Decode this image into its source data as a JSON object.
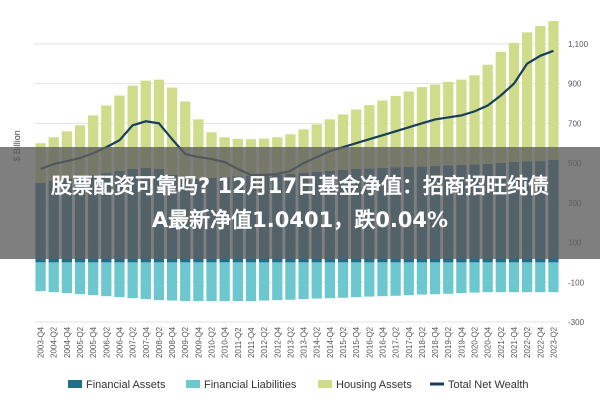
{
  "headline": {
    "line1": "股票配资可靠吗? 12月17日基金净值：招商招旺纯债",
    "line2": "A最新净值1.0401，跌0.04%"
  },
  "chart_data": {
    "type": "bar",
    "ylabel": "$ Billion",
    "ylim": [
      -300,
      1200
    ],
    "yticks": [
      -300,
      -100,
      100,
      300,
      500,
      700,
      900,
      1100
    ],
    "ytick_labels": [
      "-300",
      "-100",
      "100",
      "300",
      "500",
      "700",
      "900",
      "1,100"
    ],
    "grid": true,
    "legend_position": "bottom",
    "categories": [
      "2003-Q4",
      "2004-Q2",
      "2004-Q4",
      "2005-Q2",
      "2005-Q4",
      "2006-Q2",
      "2006-Q4",
      "2007-Q2",
      "2007-Q4",
      "2008-Q2",
      "2008-Q4",
      "2009-Q2",
      "2009-Q4",
      "2010-Q2",
      "2010-Q4",
      "2011-Q2",
      "2011-Q4",
      "2012-Q2",
      "2012-Q4",
      "2013-Q2",
      "2013-Q4",
      "2014-Q2",
      "2014-Q4",
      "2015-Q2",
      "2015-Q4",
      "2016-Q2",
      "2016-Q4",
      "2017-Q2",
      "2017-Q4",
      "2018-Q2",
      "2018-Q4",
      "2019-Q2",
      "2019-Q4",
      "2020-Q2",
      "2020-Q4",
      "2021-Q2",
      "2021-Q4",
      "2022-Q2",
      "2022-Q4",
      "2023-Q2"
    ],
    "colors": {
      "financial_assets": "#1f6f8b",
      "financial_liabilities": "#6cc7cf",
      "housing_assets": "#cfdc8a",
      "total_net_wealth": "#183e5c"
    },
    "series": [
      {
        "name": "Financial Assets",
        "key": "financial_assets",
        "values": [
          400,
          410,
          420,
          430,
          440,
          450,
          460,
          470,
          475,
          470,
          440,
          420,
          420,
          425,
          430,
          432,
          435,
          438,
          440,
          445,
          450,
          455,
          460,
          465,
          470,
          472,
          475,
          478,
          480,
          482,
          485,
          488,
          490,
          492,
          495,
          500,
          505,
          508,
          510,
          515
        ]
      },
      {
        "name": "Financial Liabilities",
        "key": "financial_liabilities",
        "values": [
          -145,
          -150,
          -155,
          -160,
          -165,
          -170,
          -175,
          -180,
          -185,
          -190,
          -192,
          -195,
          -195,
          -195,
          -195,
          -195,
          -195,
          -192,
          -190,
          -188,
          -185,
          -182,
          -180,
          -178,
          -175,
          -172,
          -170,
          -168,
          -165,
          -162,
          -160,
          -158,
          -155,
          -152,
          -150,
          -150,
          -150,
          -150,
          -150,
          -150
        ]
      },
      {
        "name": "Housing Assets",
        "key": "housing_assets",
        "values": [
          200,
          220,
          240,
          260,
          300,
          340,
          380,
          420,
          440,
          450,
          440,
          390,
          300,
          230,
          200,
          190,
          185,
          185,
          190,
          200,
          220,
          240,
          260,
          280,
          300,
          320,
          340,
          360,
          380,
          400,
          410,
          420,
          430,
          450,
          500,
          560,
          600,
          650,
          680,
          700
        ]
      },
      {
        "name": "Total Net Wealth",
        "key": "total_net_wealth",
        "values": [
          470,
          495,
          510,
          525,
          550,
          580,
          615,
          690,
          710,
          700,
          620,
          545,
          530,
          520,
          505,
          470,
          440,
          440,
          445,
          460,
          500,
          530,
          560,
          580,
          600,
          620,
          640,
          660,
          680,
          700,
          720,
          730,
          740,
          760,
          790,
          840,
          900,
          1000,
          1040,
          1065
        ]
      }
    ],
    "legend": [
      "Financial Assets",
      "Financial Liabilities",
      "Housing Assets",
      "Total Net Wealth"
    ]
  }
}
